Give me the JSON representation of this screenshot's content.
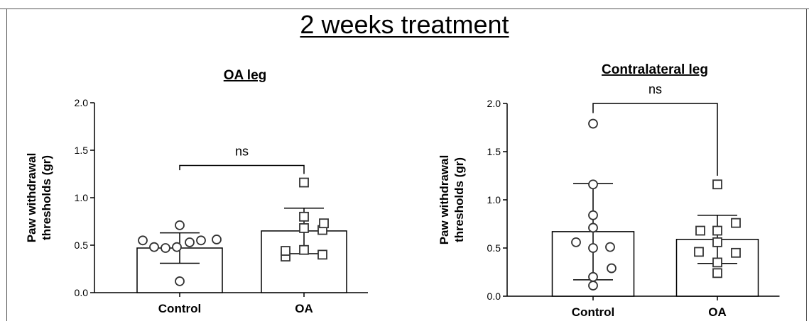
{
  "page_title": "2 weeks treatment",
  "chart_data": [
    {
      "type": "bar",
      "title": "OA leg",
      "xlabel": "",
      "ylabel": "Paw withdrawal thresholds (gr)",
      "ylim": [
        0,
        2.0
      ],
      "yticks": [
        0.0,
        0.5,
        1.0,
        1.5,
        2.0
      ],
      "ytick_labels": [
        "0.0",
        "0.5",
        "1.0",
        "1.5",
        "2.0"
      ],
      "categories": [
        "Control",
        "OA"
      ],
      "values": [
        0.47,
        0.65
      ],
      "error_sd": [
        0.16,
        0.24
      ],
      "markers": [
        "circle",
        "square"
      ],
      "points": [
        [
          0.55,
          0.48,
          0.47,
          0.48,
          0.53,
          0.55,
          0.71,
          0.56,
          0.12
        ],
        [
          0.38,
          0.68,
          0.8,
          0.66,
          0.73,
          0.44,
          0.45,
          0.4,
          1.16
        ]
      ],
      "significance": {
        "label": "ns",
        "y": 1.34,
        "left_to": 1.29,
        "right_to": 1.25
      }
    },
    {
      "type": "bar",
      "title": "Contralateral leg",
      "xlabel": "",
      "ylabel": "Paw withdrawal thresholds (gr)",
      "ylim": [
        0,
        2.0
      ],
      "yticks": [
        0.0,
        0.5,
        1.0,
        1.5,
        2.0
      ],
      "ytick_labels": [
        "0.0",
        "0.5",
        "1.0",
        "1.5",
        "2.0"
      ],
      "categories": [
        "Control",
        "OA"
      ],
      "values": [
        0.67,
        0.59
      ],
      "error_sd": [
        0.5,
        0.25
      ],
      "markers": [
        "circle",
        "square"
      ],
      "points": [
        [
          1.79,
          1.16,
          0.84,
          0.71,
          0.56,
          0.5,
          0.51,
          0.29,
          0.2,
          0.11
        ],
        [
          1.16,
          0.68,
          0.68,
          0.76,
          0.56,
          0.46,
          0.45,
          0.35,
          0.24
        ]
      ],
      "significance": {
        "label": "ns",
        "y": 2.0,
        "left_to": 1.9,
        "right_to": 1.25
      }
    }
  ]
}
